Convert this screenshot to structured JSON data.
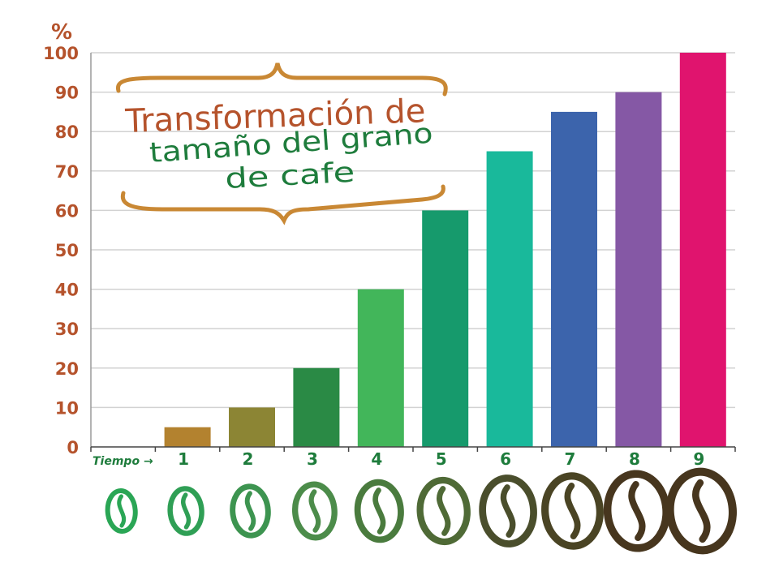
{
  "chart_data": {
    "type": "bar",
    "title_line1": "Transformación de",
    "title_line2": "tamaño del grano",
    "title_line3": "de cafe",
    "ylabel": "%",
    "xlabel": "Tiempo →",
    "ylim": [
      0,
      100
    ],
    "yticks": [
      0,
      10,
      20,
      30,
      40,
      50,
      60,
      70,
      80,
      90,
      100
    ],
    "grid": true,
    "categories": [
      "1",
      "2",
      "3",
      "4",
      "5",
      "6",
      "7",
      "8",
      "9"
    ],
    "values": [
      5,
      10,
      20,
      40,
      60,
      75,
      85,
      90,
      100
    ],
    "bar_colors": [
      "#b3822f",
      "#8c8534",
      "#2a8a45",
      "#42b65a",
      "#169a6c",
      "#19b99b",
      "#3c64ac",
      "#8558a5",
      "#e0146e"
    ],
    "bean_colors": [
      "#2aa655",
      "#2f9f55",
      "#3d9450",
      "#4c8c4a",
      "#4a7b3e",
      "#4f6a36",
      "#4a4e2c",
      "#4a4424",
      "#47361e"
    ],
    "bean_icon": "coffee-bean-icon"
  },
  "colors": {
    "axis_text": "#b5532c",
    "title_orange": "#b5532c",
    "title_green": "#1e7c3c",
    "brace": "#c98834",
    "grid": "#d2d2d2"
  }
}
